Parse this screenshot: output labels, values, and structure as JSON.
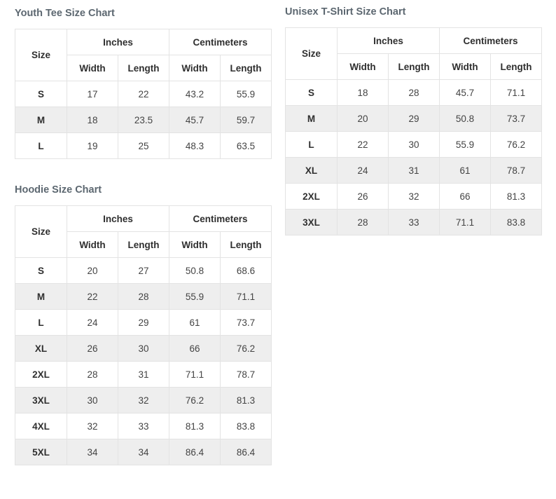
{
  "labels": {
    "size": "Size",
    "inches": "Inches",
    "centimeters": "Centimeters",
    "width": "Width",
    "length": "Length"
  },
  "charts": [
    {
      "id": "youth-tee",
      "title": "Youth Tee Size Chart",
      "rows": [
        [
          "S",
          "17",
          "22",
          "43.2",
          "55.9"
        ],
        [
          "M",
          "18",
          "23.5",
          "45.7",
          "59.7"
        ],
        [
          "L",
          "19",
          "25",
          "48.3",
          "63.5"
        ]
      ]
    },
    {
      "id": "hoodie",
      "title": "Hoodie Size Chart",
      "rows": [
        [
          "S",
          "20",
          "27",
          "50.8",
          "68.6"
        ],
        [
          "M",
          "22",
          "28",
          "55.9",
          "71.1"
        ],
        [
          "L",
          "24",
          "29",
          "61",
          "73.7"
        ],
        [
          "XL",
          "26",
          "30",
          "66",
          "76.2"
        ],
        [
          "2XL",
          "28",
          "31",
          "71.1",
          "78.7"
        ],
        [
          "3XL",
          "30",
          "32",
          "76.2",
          "81.3"
        ],
        [
          "4XL",
          "32",
          "33",
          "81.3",
          "83.8"
        ],
        [
          "5XL",
          "34",
          "34",
          "86.4",
          "86.4"
        ]
      ]
    },
    {
      "id": "unisex-tshirt",
      "title": "Unisex T-Shirt Size Chart",
      "rows": [
        [
          "S",
          "18",
          "28",
          "45.7",
          "71.1"
        ],
        [
          "M",
          "20",
          "29",
          "50.8",
          "73.7"
        ],
        [
          "L",
          "22",
          "30",
          "55.9",
          "76.2"
        ],
        [
          "XL",
          "24",
          "31",
          "61",
          "78.7"
        ],
        [
          "2XL",
          "26",
          "32",
          "66",
          "81.3"
        ],
        [
          "3XL",
          "28",
          "33",
          "71.1",
          "83.8"
        ]
      ]
    }
  ]
}
